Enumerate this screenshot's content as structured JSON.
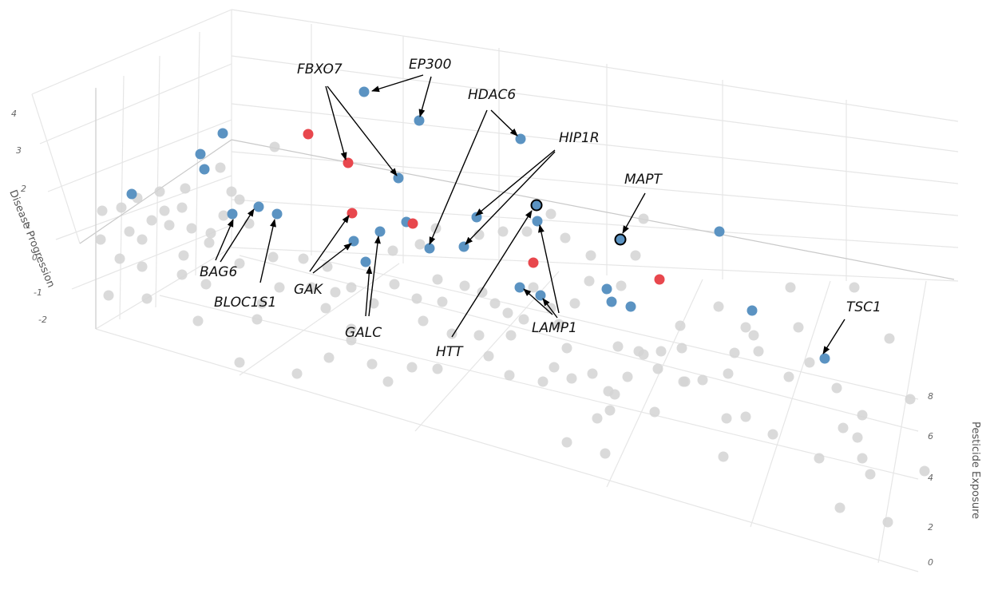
{
  "chart_data": {
    "type": "scatter",
    "title": "",
    "axes": {
      "z": {
        "label": "Disease Progression",
        "ticks": [
          "4",
          "3",
          "2",
          "1",
          "0",
          "-1",
          "-2"
        ]
      },
      "y": {
        "label": "Pesticide Exposure",
        "ticks": [
          "8",
          "6",
          "4",
          "2",
          "0"
        ]
      }
    },
    "grid": true,
    "colors": {
      "blue": "#5b93c2",
      "red": "#e8474d",
      "gray": "#d4d4d4",
      "arrow": "#000000"
    },
    "annotations": [
      {
        "gene": "FBXO7"
      },
      {
        "gene": "EP300"
      },
      {
        "gene": "HDAC6"
      },
      {
        "gene": "HIP1R"
      },
      {
        "gene": "MAPT"
      },
      {
        "gene": "BAG6"
      },
      {
        "gene": "BLOC1S1"
      },
      {
        "gene": "GAK"
      },
      {
        "gene": "GALC"
      },
      {
        "gene": "HTT"
      },
      {
        "gene": "LAMP1"
      },
      {
        "gene": "TSC1"
      }
    ]
  }
}
